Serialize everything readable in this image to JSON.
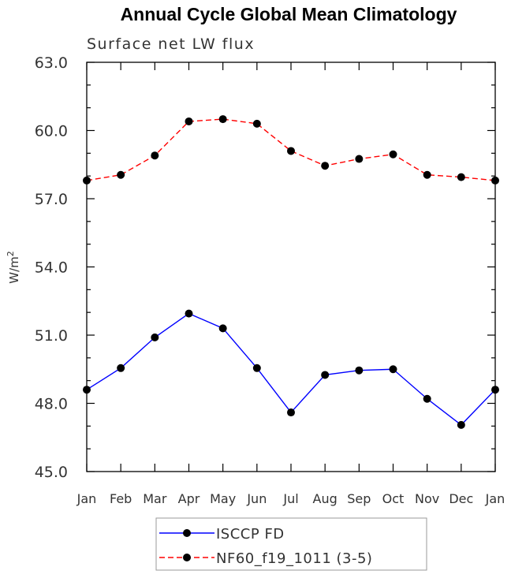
{
  "chart_data": {
    "type": "line",
    "title": "Annual Cycle Global Mean Climatology",
    "subtitle": "Surface net LW flux",
    "ylabel": "W/m",
    "ylabel_sup": "2",
    "xlabel": "",
    "categories": [
      "Jan",
      "Feb",
      "Mar",
      "Apr",
      "May",
      "Jun",
      "Jul",
      "Aug",
      "Sep",
      "Oct",
      "Nov",
      "Dec",
      "Jan"
    ],
    "ylim": [
      45.0,
      63.0
    ],
    "yticks": [
      "45.0",
      "48.0",
      "51.0",
      "54.0",
      "57.0",
      "60.0",
      "63.0"
    ],
    "grid": false,
    "legend_position": "bottom",
    "series": [
      {
        "name": "ISCCP FD",
        "color": "#0000ff",
        "dash": "solid",
        "marker": "filled-circle",
        "values": [
          48.6,
          49.55,
          50.9,
          51.95,
          51.3,
          49.55,
          47.6,
          49.25,
          49.45,
          49.5,
          48.2,
          47.05,
          48.6
        ]
      },
      {
        "name": "NF60_f19_1011 (3-5)",
        "color": "#ff0000",
        "dash": "dashed",
        "marker": "filled-circle",
        "values": [
          57.8,
          58.05,
          58.9,
          60.4,
          60.5,
          60.3,
          59.1,
          58.45,
          58.75,
          58.95,
          58.05,
          57.95,
          57.8
        ]
      }
    ]
  }
}
